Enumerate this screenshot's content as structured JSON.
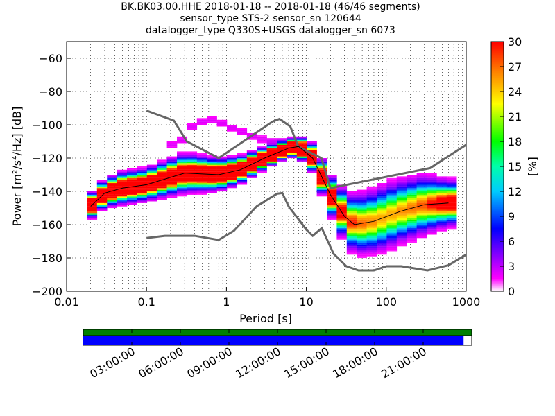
{
  "chart_data": {
    "type": "heatmap",
    "title": [
      "BK.BK03.00.HHE   2018-01-18 -- 2018-01-18  (46/46 segments)",
      "sensor_type STS-2 sensor_sn 120644",
      "datalogger_type Q330S+USGS datalogger_sn 6073"
    ],
    "xlabel": "Period [s]",
    "ylabel": "Power [m²/s⁴/Hz] [dB]",
    "xscale": "log",
    "xlim": [
      0.01,
      1000
    ],
    "ylim": [
      -200,
      -50
    ],
    "xticks": [
      {
        "v": 0.01,
        "label": "0.01"
      },
      {
        "v": 0.1,
        "label": "0.1"
      },
      {
        "v": 1,
        "label": "1"
      },
      {
        "v": 10,
        "label": "10"
      },
      {
        "v": 100,
        "label": "100"
      },
      {
        "v": 1000,
        "label": "1000"
      }
    ],
    "yticks": [
      {
        "v": -60,
        "label": "−60"
      },
      {
        "v": -80,
        "label": "−80"
      },
      {
        "v": -100,
        "label": "−100"
      },
      {
        "v": -120,
        "label": "−120"
      },
      {
        "v": -140,
        "label": "−140"
      },
      {
        "v": -160,
        "label": "−160"
      },
      {
        "v": -180,
        "label": "−180"
      },
      {
        "v": -200,
        "label": "−200"
      }
    ],
    "grid": true,
    "colorbar": {
      "label": "[%]",
      "range": [
        0,
        30
      ],
      "ticks": [
        "0",
        "3",
        "6",
        "9",
        "12",
        "15",
        "18",
        "21",
        "24",
        "27",
        "30"
      ]
    },
    "noise_models": {
      "high": [
        [
          0.1,
          -91.5
        ],
        [
          0.22,
          -97.5
        ],
        [
          0.32,
          -110
        ],
        [
          0.8,
          -120
        ],
        [
          3.8,
          -98
        ],
        [
          4.6,
          -96.5
        ],
        [
          6.3,
          -101
        ],
        [
          7.9,
          -113
        ],
        [
          15.4,
          -120
        ],
        [
          20,
          -138
        ],
        [
          354,
          -126
        ],
        [
          1000,
          -112
        ]
      ],
      "low": [
        [
          0.1,
          -168
        ],
        [
          0.17,
          -166.7
        ],
        [
          0.4,
          -166.7
        ],
        [
          0.8,
          -169.2
        ],
        [
          1.24,
          -163.7
        ],
        [
          2.4,
          -148.9
        ],
        [
          4.3,
          -141.4
        ],
        [
          5,
          -141
        ],
        [
          6,
          -149
        ],
        [
          10,
          -163
        ],
        [
          12,
          -166.7
        ],
        [
          15.6,
          -162.1
        ],
        [
          21.9,
          -177.5
        ],
        [
          31.6,
          -185
        ],
        [
          45,
          -187.5
        ],
        [
          70,
          -187.5
        ],
        [
          101,
          -185
        ],
        [
          154,
          -185
        ],
        [
          328,
          -187.5
        ],
        [
          600,
          -184.4
        ],
        [
          1000,
          -178
        ]
      ]
    },
    "mean_curve": [
      [
        0.02,
        -149
      ],
      [
        0.03,
        -141
      ],
      [
        0.05,
        -138
      ],
      [
        0.1,
        -136
      ],
      [
        0.3,
        -129
      ],
      [
        0.8,
        -130
      ],
      [
        1.5,
        -127
      ],
      [
        3,
        -120
      ],
      [
        6,
        -114
      ],
      [
        8,
        -113
      ],
      [
        12,
        -120
      ],
      [
        20,
        -142
      ],
      [
        30,
        -155
      ],
      [
        40,
        -160
      ],
      [
        70,
        -158
      ],
      [
        150,
        -152
      ],
      [
        300,
        -148
      ],
      [
        600,
        -147
      ]
    ],
    "spread_db": [
      [
        0.02,
        3
      ],
      [
        0.05,
        4
      ],
      [
        0.1,
        4
      ],
      [
        0.3,
        5
      ],
      [
        0.8,
        4
      ],
      [
        2,
        3
      ],
      [
        6,
        2
      ],
      [
        10,
        3
      ],
      [
        20,
        5
      ],
      [
        40,
        8
      ],
      [
        100,
        9
      ],
      [
        300,
        8
      ],
      [
        600,
        6
      ]
    ],
    "secondary_mode": [
      [
        0.25,
        -112
      ],
      [
        0.4,
        -99
      ],
      [
        0.7,
        -97
      ],
      [
        1.2,
        -102
      ],
      [
        2.4,
        -108
      ],
      [
        4,
        -110
      ]
    ],
    "time_axis": {
      "labels": [
        "03:00:00",
        "06:00:00",
        "09:00:00",
        "12:00:00",
        "15:00:00",
        "18:00:00",
        "21:00:00"
      ],
      "data_coverage_fraction": 0.979
    }
  },
  "colors": {
    "noise_model": "#666666",
    "mean": "#000000",
    "available": "#008000",
    "used": "#0000ff"
  }
}
